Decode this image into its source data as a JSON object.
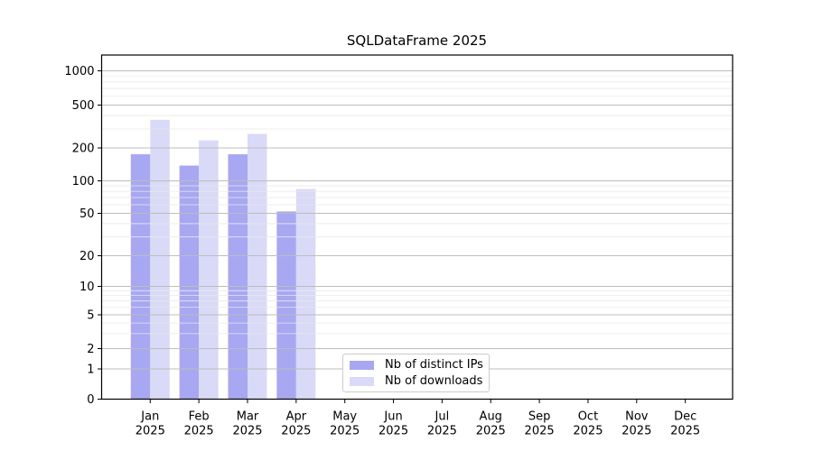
{
  "title": "SQLDataFrame 2025",
  "legend": {
    "items": [
      {
        "label": "Nb of distinct IPs",
        "color": "#a7a7f2"
      },
      {
        "label": "Nb of downloads",
        "color": "#d9d9f8"
      }
    ]
  },
  "chart_data": {
    "type": "bar",
    "title": "SQLDataFrame 2025",
    "categories": [
      "Jan 2025",
      "Feb 2025",
      "Mar 2025",
      "Apr 2025",
      "May 2025",
      "Jun 2025",
      "Jul 2025",
      "Aug 2025",
      "Sep 2025",
      "Oct 2025",
      "Nov 2025",
      "Dec 2025"
    ],
    "series": [
      {
        "name": "Nb of distinct IPs",
        "color": "#a7a7f2",
        "values": [
          175,
          138,
          175,
          52,
          0,
          0,
          0,
          0,
          0,
          0,
          0,
          0
        ]
      },
      {
        "name": "Nb of downloads",
        "color": "#d9d9f8",
        "values": [
          365,
          235,
          270,
          84,
          0,
          0,
          0,
          0,
          0,
          0,
          0,
          0
        ]
      }
    ],
    "xlabel": "",
    "ylabel": "",
    "yscale": "symlog",
    "yticks": [
      0,
      1,
      2,
      5,
      10,
      20,
      50,
      100,
      200,
      500,
      1000
    ],
    "ylim": [
      0,
      1400
    ],
    "grid": "both-major-and-minor",
    "grid_over_bars": true,
    "legend_position": "lower center inside"
  }
}
